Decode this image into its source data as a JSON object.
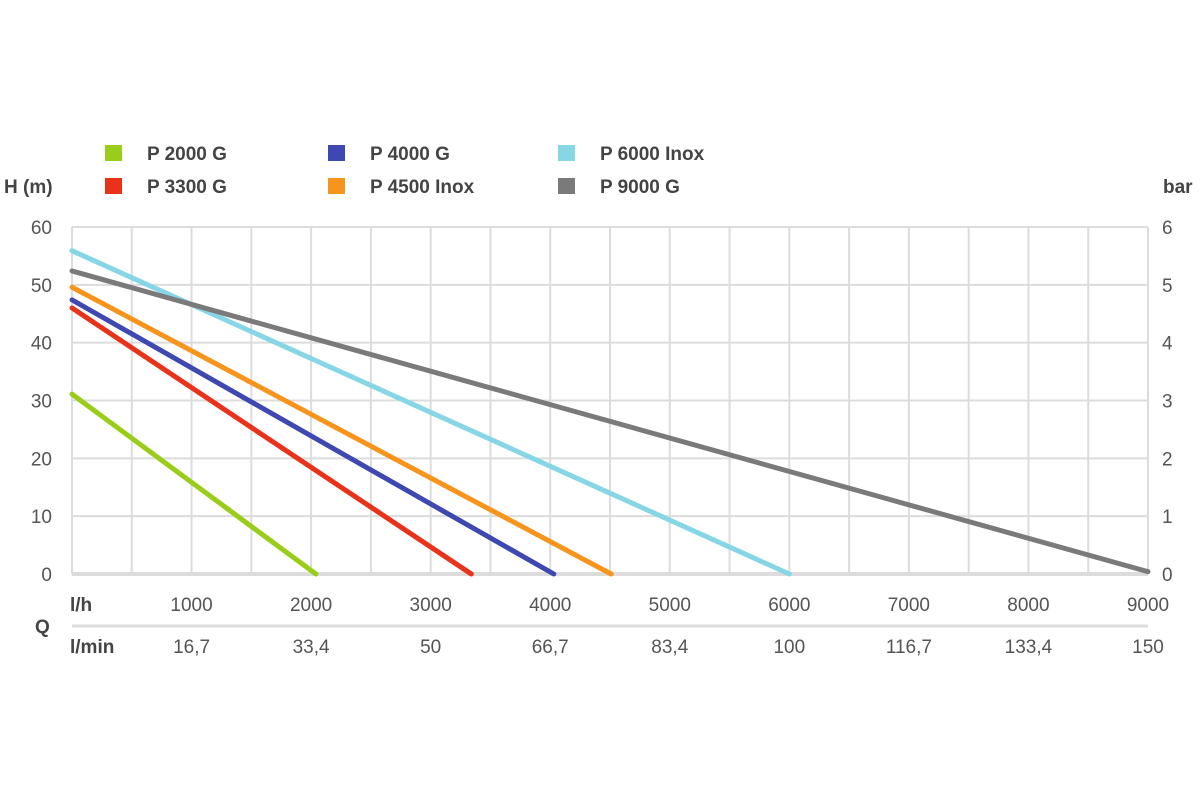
{
  "chart_data": {
    "type": "line",
    "title": "",
    "ylabel": "H (m)",
    "ylabel_right": "bar",
    "xlabel": "Q",
    "x_unit_primary": "l/h",
    "x_unit_secondary": "l/min",
    "xlim": [
      0,
      9000
    ],
    "ylim": [
      0,
      60
    ],
    "ylim_right": [
      0,
      6
    ],
    "grid": true,
    "legend_position": "top",
    "x_ticks": [
      1000,
      2000,
      3000,
      4000,
      5000,
      6000,
      7000,
      8000,
      9000
    ],
    "x_tick_labels": [
      "1000",
      "2000",
      "3000",
      "4000",
      "5000",
      "6000",
      "7000",
      "8000",
      "9000"
    ],
    "x_secondary_tick_labels": [
      "16,7",
      "33,4",
      "50",
      "66,7",
      "83,4",
      "100",
      "116,7",
      "133,4",
      "150"
    ],
    "y_ticks": [
      0,
      10,
      20,
      30,
      40,
      50,
      60
    ],
    "y_tick_labels": [
      "0",
      "10",
      "20",
      "30",
      "40",
      "50",
      "60"
    ],
    "y_right_tick_labels": [
      "0",
      "1",
      "2",
      "3",
      "4",
      "5",
      "6"
    ],
    "series": [
      {
        "name": "P 2000 G",
        "color": "#9acd1a",
        "x": [
          0,
          2040
        ],
        "y": [
          31.1,
          0
        ]
      },
      {
        "name": "P 3300 G",
        "color": "#e8321a",
        "x": [
          0,
          3340
        ],
        "y": [
          46.0,
          0
        ]
      },
      {
        "name": "P 4000 G",
        "color": "#3f48b0",
        "x": [
          0,
          4030
        ],
        "y": [
          47.4,
          0
        ]
      },
      {
        "name": "P 4500 Inox",
        "color": "#f7941d",
        "x": [
          0,
          4510
        ],
        "y": [
          49.6,
          0
        ]
      },
      {
        "name": "P 6000 Inox",
        "color": "#86d6e6",
        "x": [
          0,
          6000
        ],
        "y": [
          55.9,
          0
        ]
      },
      {
        "name": "P 9000 G",
        "color": "#7a7a7a",
        "x": [
          0,
          9000
        ],
        "y": [
          52.4,
          0.4
        ]
      }
    ]
  }
}
